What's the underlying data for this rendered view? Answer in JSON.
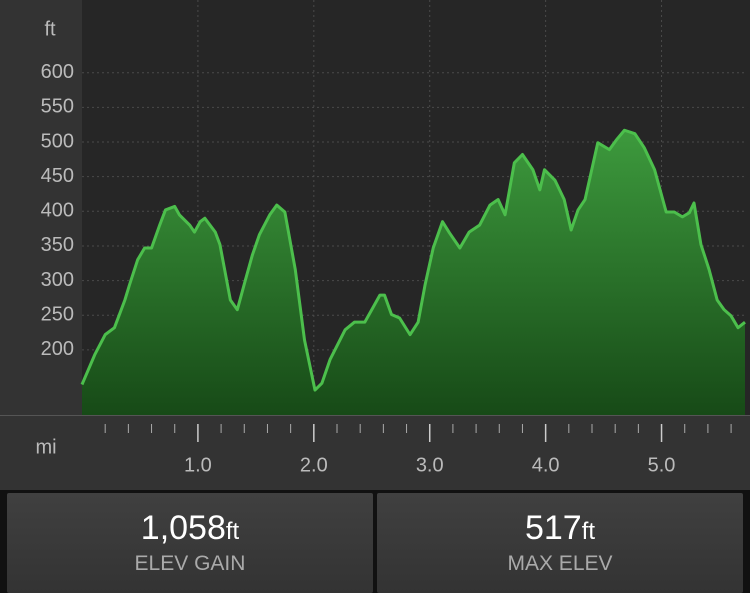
{
  "chart_data": {
    "type": "area",
    "y_label": "ft",
    "x_label": "mi",
    "x": [
      0,
      0.11,
      0.2,
      0.28,
      0.37,
      0.41,
      0.48,
      0.54,
      0.6,
      0.67,
      0.72,
      0.8,
      0.84,
      0.93,
      0.97,
      1.02,
      1.06,
      1.15,
      1.19,
      1.28,
      1.34,
      1.41,
      1.47,
      1.53,
      1.62,
      1.68,
      1.75,
      1.84,
      1.92,
      2.01,
      2.07,
      2.14,
      2.27,
      2.35,
      2.44,
      2.51,
      2.57,
      2.61,
      2.67,
      2.74,
      2.83,
      2.9,
      2.96,
      3.03,
      3.11,
      3.17,
      3.26,
      3.34,
      3.43,
      3.52,
      3.59,
      3.65,
      3.73,
      3.8,
      3.89,
      3.95,
      3.99,
      4.08,
      4.16,
      4.22,
      4.28,
      4.34,
      4.45,
      4.55,
      4.61,
      4.68,
      4.77,
      4.85,
      4.94,
      5.04,
      5.11,
      5.18,
      5.24,
      5.28,
      5.34,
      5.41,
      5.48,
      5.54,
      5.6,
      5.66,
      5.72
    ],
    "values": [
      150,
      193,
      222,
      232,
      272,
      294,
      330,
      347,
      347,
      380,
      402,
      407,
      395,
      380,
      370,
      385,
      390,
      370,
      352,
      272,
      258,
      301,
      337,
      366,
      395,
      409,
      399,
      316,
      214,
      142,
      152,
      186,
      229,
      240,
      240,
      261,
      279,
      279,
      251,
      246,
      222,
      240,
      294,
      347,
      385,
      369,
      347,
      370,
      380,
      409,
      417,
      395,
      470,
      482,
      460,
      431,
      460,
      445,
      417,
      373,
      402,
      417,
      499,
      489,
      503,
      517,
      512,
      492,
      460,
      399,
      399,
      392,
      398,
      412,
      352,
      316,
      272,
      258,
      249,
      232,
      240
    ],
    "color": "#4cbf4c",
    "xlim": [
      0,
      5.72
    ],
    "ylim": [
      106,
      705
    ],
    "yticks": [
      200,
      250,
      300,
      350,
      400,
      450,
      500,
      550,
      600
    ],
    "xticks": [
      {
        "value": 1,
        "label": "1.0"
      },
      {
        "value": 2,
        "label": "2.0"
      },
      {
        "value": 3,
        "label": "3.0"
      },
      {
        "value": 4,
        "label": "4.0"
      },
      {
        "value": 5,
        "label": "5.0"
      }
    ],
    "xminorticks": [
      0.2,
      0.4,
      0.6,
      0.8,
      1.2,
      1.4,
      1.6,
      1.8,
      2.2,
      2.4,
      2.6,
      2.8,
      3.2,
      3.4,
      3.6,
      3.8,
      4.2,
      4.4,
      4.6,
      4.8,
      5.2,
      5.4,
      5.6
    ],
    "grid": true
  },
  "stats": [
    {
      "value": "1,058",
      "unit": "ft",
      "label": "ELEV GAIN"
    },
    {
      "value": "517",
      "unit": "ft",
      "label": "MAX ELEV"
    }
  ]
}
